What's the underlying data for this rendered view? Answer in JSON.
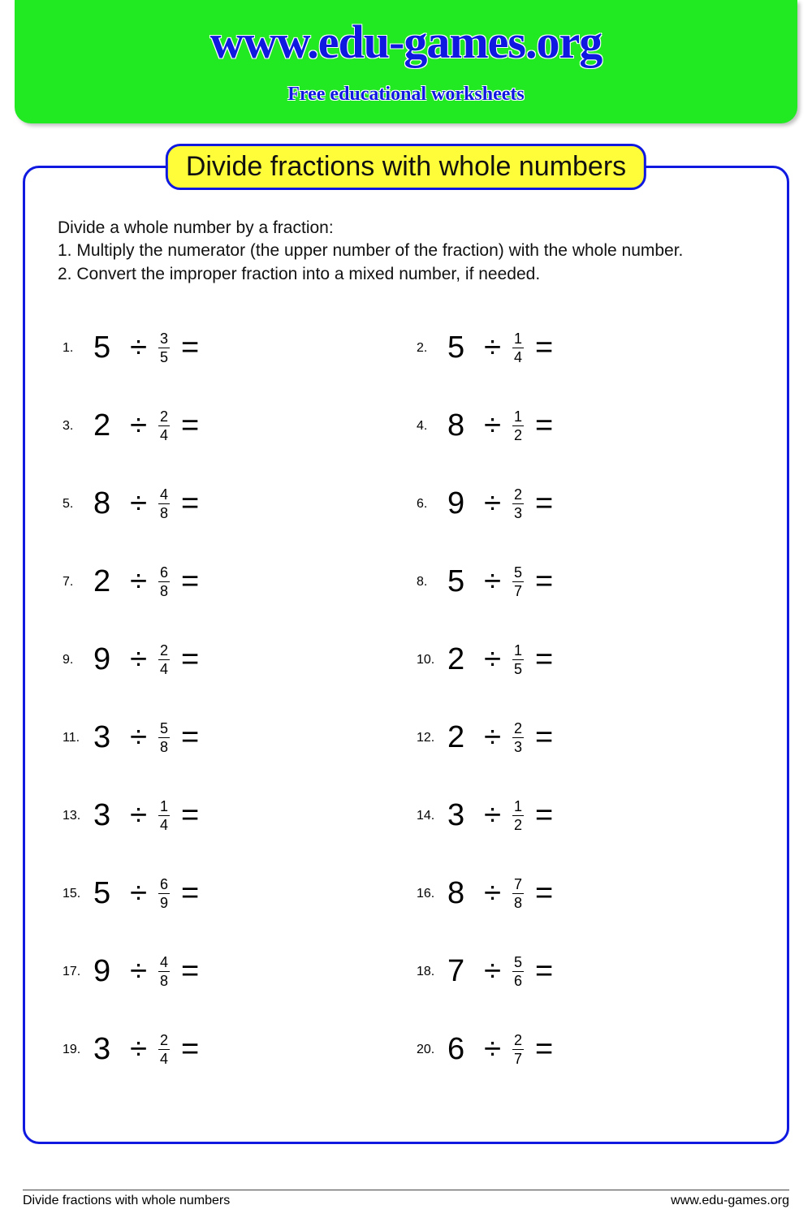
{
  "header": {
    "site_url": "www.edu-games.org",
    "tagline": "Free educational worksheets",
    "bg_color": "#22ea22",
    "text_color": "#0f19e0"
  },
  "worksheet": {
    "title": "Divide fractions with whole numbers",
    "title_bg": "#fffd3a",
    "border_color": "#0f19e0",
    "instructions_heading": "Divide a whole number by a fraction:",
    "instruction_1": "1. Multiply the numerator (the upper number of the fraction) with the whole number.",
    "instruction_2": "2. Convert the improper fraction into a mixed number, if needed.",
    "divide_symbol": "÷",
    "equals_symbol": "=",
    "problems": [
      {
        "n": "1.",
        "whole": "5",
        "num": "3",
        "den": "5"
      },
      {
        "n": "2.",
        "whole": "5",
        "num": "1",
        "den": "4"
      },
      {
        "n": "3.",
        "whole": "2",
        "num": "2",
        "den": "4"
      },
      {
        "n": "4.",
        "whole": "8",
        "num": "1",
        "den": "2"
      },
      {
        "n": "5.",
        "whole": "8",
        "num": "4",
        "den": "8"
      },
      {
        "n": "6.",
        "whole": "9",
        "num": "2",
        "den": "3"
      },
      {
        "n": "7.",
        "whole": "2",
        "num": "6",
        "den": "8"
      },
      {
        "n": "8.",
        "whole": "5",
        "num": "5",
        "den": "7"
      },
      {
        "n": "9.",
        "whole": "9",
        "num": "2",
        "den": "4"
      },
      {
        "n": "10.",
        "whole": "2",
        "num": "1",
        "den": "5"
      },
      {
        "n": "11.",
        "whole": "3",
        "num": "5",
        "den": "8"
      },
      {
        "n": "12.",
        "whole": "2",
        "num": "2",
        "den": "3"
      },
      {
        "n": "13.",
        "whole": "3",
        "num": "1",
        "den": "4"
      },
      {
        "n": "14.",
        "whole": "3",
        "num": "1",
        "den": "2"
      },
      {
        "n": "15.",
        "whole": "5",
        "num": "6",
        "den": "9"
      },
      {
        "n": "16.",
        "whole": "8",
        "num": "7",
        "den": "8"
      },
      {
        "n": "17.",
        "whole": "9",
        "num": "4",
        "den": "8"
      },
      {
        "n": "18.",
        "whole": "7",
        "num": "5",
        "den": "6"
      },
      {
        "n": "19.",
        "whole": "3",
        "num": "2",
        "den": "4"
      },
      {
        "n": "20.",
        "whole": "6",
        "num": "2",
        "den": "7"
      }
    ]
  },
  "footer": {
    "left": "Divide fractions with whole numbers",
    "right": "www.edu-games.org"
  }
}
